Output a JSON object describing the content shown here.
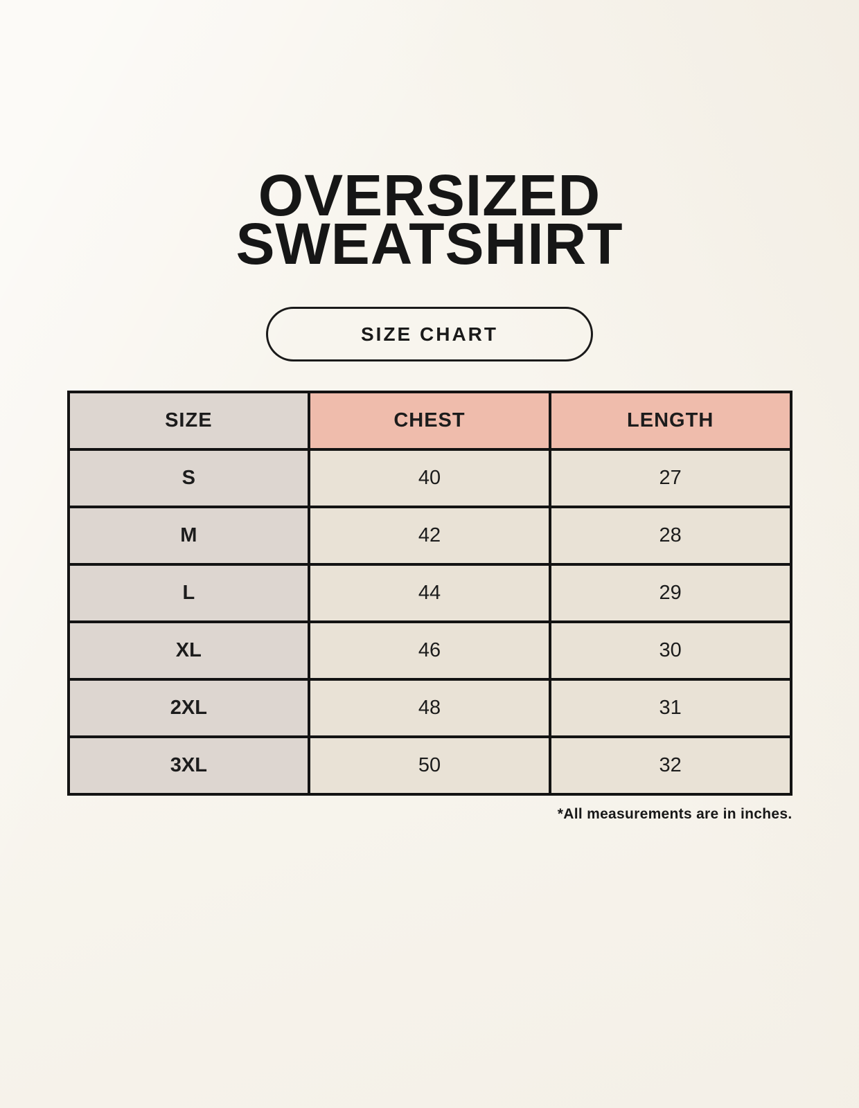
{
  "header": {
    "title_line_1": "OVERSIZED",
    "title_line_2": "SWEATSHIRT",
    "badge_label": "SIZE CHART"
  },
  "footnote": {
    "text": "*All measurements are in inches."
  },
  "colors": {
    "page_background": "#f8f5ee",
    "header_accent": "#efbcac",
    "size_column_background": "#ddd6d0",
    "value_cell_background": "#e9e2d6",
    "table_border": "#131313",
    "text": "#1c1c1c"
  },
  "chart_data": {
    "type": "table",
    "title": "OVERSIZED SWEATSHIRT",
    "subtitle": "SIZE CHART",
    "columns": [
      "SIZE",
      "CHEST",
      "LENGTH"
    ],
    "rows": [
      [
        "S",
        40,
        27
      ],
      [
        "M",
        42,
        28
      ],
      [
        "L",
        44,
        29
      ],
      [
        "XL",
        46,
        30
      ],
      [
        "2XL",
        48,
        31
      ],
      [
        "3XL",
        50,
        32
      ]
    ],
    "units_note": "*All measurements are in inches.",
    "units": "inches"
  }
}
